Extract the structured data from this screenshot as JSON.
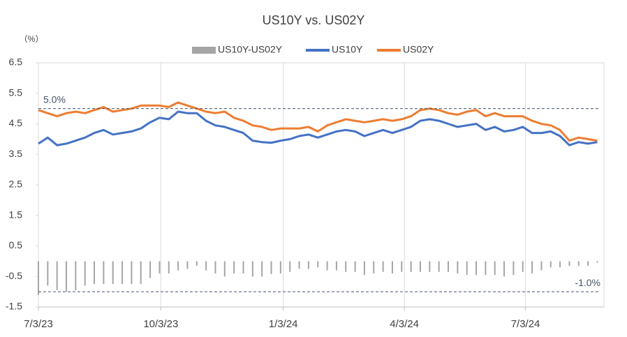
{
  "chart_data": {
    "type": "combo",
    "title": "US10Y vs. US02Y",
    "y_unit_label": "（%）",
    "x": [
      "7/3/23",
      "7/10/23",
      "7/17/23",
      "7/24/23",
      "7/31/23",
      "8/7/23",
      "8/14/23",
      "8/21/23",
      "8/28/23",
      "9/4/23",
      "9/11/23",
      "9/18/23",
      "9/25/23",
      "10/2/23",
      "10/9/23",
      "10/16/23",
      "10/23/23",
      "10/30/23",
      "11/6/23",
      "11/13/23",
      "11/20/23",
      "11/27/23",
      "12/4/23",
      "12/11/23",
      "12/18/23",
      "12/25/23",
      "1/1/24",
      "1/8/24",
      "1/15/24",
      "1/22/24",
      "1/29/24",
      "2/5/24",
      "2/12/24",
      "2/19/24",
      "2/26/24",
      "3/4/24",
      "3/11/24",
      "3/18/24",
      "3/25/24",
      "4/1/24",
      "4/8/24",
      "4/15/24",
      "4/22/24",
      "4/29/24",
      "5/6/24",
      "5/13/24",
      "5/20/24",
      "5/27/24",
      "6/3/24",
      "6/10/24",
      "6/17/24",
      "6/24/24",
      "7/1/24",
      "7/8/24",
      "7/15/24",
      "7/22/24",
      "7/29/24",
      "8/5/24",
      "8/12/24",
      "8/19/24",
      "8/26/24"
    ],
    "series": [
      {
        "name": "US10Y-US02Y",
        "type": "bar",
        "color": "#a5a5a5",
        "values": [
          -1.1,
          -0.8,
          -0.95,
          -1.0,
          -0.95,
          -0.8,
          -0.75,
          -0.75,
          -0.75,
          -0.75,
          -0.75,
          -0.75,
          -0.55,
          -0.4,
          -0.4,
          -0.3,
          -0.25,
          -0.15,
          -0.3,
          -0.4,
          -0.5,
          -0.4,
          -0.4,
          -0.5,
          -0.5,
          -0.42,
          -0.4,
          -0.35,
          -0.25,
          -0.25,
          -0.2,
          -0.3,
          -0.3,
          -0.35,
          -0.35,
          -0.45,
          -0.4,
          -0.35,
          -0.4,
          -0.35,
          -0.35,
          -0.35,
          -0.35,
          -0.35,
          -0.35,
          -0.4,
          -0.45,
          -0.45,
          -0.45,
          -0.45,
          -0.5,
          -0.45,
          -0.35,
          -0.4,
          -0.3,
          -0.2,
          -0.2,
          -0.15,
          -0.15,
          -0.15,
          -0.05
        ]
      },
      {
        "name": "US10Y",
        "type": "line",
        "color": "#4472c4",
        "values": [
          3.85,
          4.05,
          3.8,
          3.85,
          3.95,
          4.05,
          4.2,
          4.3,
          4.15,
          4.2,
          4.25,
          4.35,
          4.55,
          4.7,
          4.65,
          4.9,
          4.85,
          4.85,
          4.6,
          4.45,
          4.4,
          4.3,
          4.2,
          3.95,
          3.9,
          3.88,
          3.95,
          4.0,
          4.1,
          4.15,
          4.05,
          4.15,
          4.25,
          4.3,
          4.25,
          4.1,
          4.2,
          4.3,
          4.2,
          4.3,
          4.4,
          4.6,
          4.65,
          4.6,
          4.5,
          4.4,
          4.45,
          4.5,
          4.3,
          4.4,
          4.25,
          4.3,
          4.4,
          4.2,
          4.2,
          4.25,
          4.1,
          3.8,
          3.9,
          3.85,
          3.9
        ]
      },
      {
        "name": "US02Y",
        "type": "line",
        "color": "#ed7d31",
        "values": [
          4.95,
          4.85,
          4.75,
          4.85,
          4.9,
          4.85,
          4.95,
          5.05,
          4.9,
          4.95,
          5.0,
          5.1,
          5.1,
          5.1,
          5.05,
          5.2,
          5.1,
          5.0,
          4.9,
          4.85,
          4.9,
          4.7,
          4.6,
          4.45,
          4.4,
          4.3,
          4.35,
          4.35,
          4.35,
          4.4,
          4.25,
          4.45,
          4.55,
          4.65,
          4.6,
          4.55,
          4.6,
          4.65,
          4.6,
          4.65,
          4.75,
          4.95,
          5.0,
          4.95,
          4.85,
          4.8,
          4.9,
          4.95,
          4.75,
          4.85,
          4.75,
          4.75,
          4.75,
          4.6,
          4.5,
          4.45,
          4.3,
          3.95,
          4.05,
          4.0,
          3.95
        ]
      }
    ],
    "xlim": [
      "7/3/23",
      "8/31/24"
    ],
    "xticks": [
      "7/3/23",
      "10/3/23",
      "1/3/24",
      "4/3/24",
      "7/3/24"
    ],
    "ylim": [
      -1.5,
      6.5
    ],
    "yticks": [
      -1.5,
      -0.5,
      0.5,
      1.5,
      2.5,
      3.5,
      4.5,
      5.5,
      6.5
    ],
    "grid": "x",
    "legend": "top",
    "reference_lines": [
      {
        "value": 5.0,
        "label": "5.0%",
        "color": "#44546a"
      },
      {
        "value": -1.0,
        "label": "-1.0%",
        "color": "#44546a"
      }
    ]
  }
}
